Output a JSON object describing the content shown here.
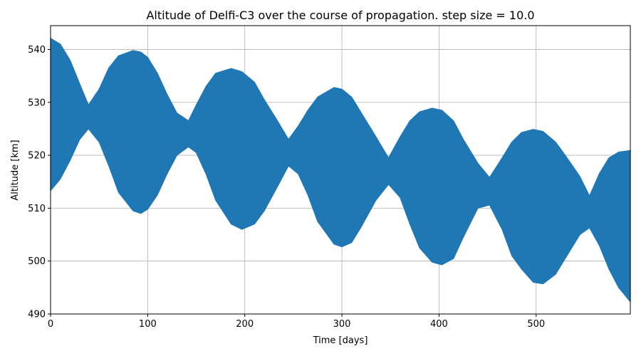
{
  "chart_data": {
    "type": "area",
    "title": "Altitude of Delfi-C3 over the course of propagation. step size = 10.0",
    "xlabel": "Time [days]",
    "ylabel": "Altitude [km]",
    "xlim": [
      0,
      597
    ],
    "ylim": [
      490,
      544.5
    ],
    "xticks": [
      0,
      100,
      200,
      300,
      400,
      500
    ],
    "yticks": [
      490,
      500,
      510,
      520,
      530,
      540
    ],
    "grid": true,
    "legend": "none",
    "color": "#1f77b4",
    "series": [
      {
        "x": [
          0,
          10,
          20,
          30,
          39,
          50,
          60,
          70,
          85,
          93,
          100,
          110,
          120,
          130,
          142,
          150,
          160,
          170,
          186,
          197,
          210,
          220,
          232,
          245,
          255,
          265,
          275,
          292,
          300,
          310,
          320,
          335,
          348,
          360,
          370,
          380,
          393,
          403,
          415,
          425,
          440,
          452,
          465,
          475,
          485,
          497,
          507,
          520,
          530,
          545,
          555,
          565,
          575,
          585,
          597
        ],
        "upper": [
          542.1,
          541.0,
          538.0,
          533.5,
          529.5,
          532.5,
          536.5,
          538.8,
          539.8,
          539.5,
          538.5,
          535.5,
          531.5,
          528.0,
          526.5,
          529.5,
          533.0,
          535.5,
          536.4,
          535.8,
          533.8,
          530.5,
          527.0,
          523.0,
          525.5,
          528.5,
          531.0,
          532.8,
          532.5,
          531.0,
          528.0,
          523.5,
          519.5,
          523.5,
          526.5,
          528.2,
          528.9,
          528.5,
          526.5,
          523.0,
          518.5,
          515.8,
          519.5,
          522.5,
          524.3,
          524.9,
          524.5,
          522.5,
          520.0,
          516.0,
          512.3,
          516.5,
          519.5,
          520.6,
          520.9
        ],
        "lower": [
          513.3,
          515.5,
          519.0,
          523.0,
          525.0,
          522.5,
          518.0,
          513.0,
          509.5,
          509.0,
          509.8,
          512.5,
          516.5,
          520.0,
          521.6,
          520.5,
          516.5,
          511.5,
          507.0,
          506.0,
          507.0,
          509.5,
          513.5,
          518.0,
          516.5,
          512.5,
          507.5,
          503.2,
          502.7,
          503.5,
          506.5,
          511.5,
          514.5,
          512.0,
          507.0,
          502.5,
          499.8,
          499.3,
          500.5,
          504.5,
          510.0,
          510.6,
          506.0,
          501.0,
          498.5,
          496.0,
          495.7,
          497.5,
          500.5,
          505.0,
          506.3,
          503.0,
          498.5,
          495.0,
          492.3
        ]
      }
    ]
  }
}
